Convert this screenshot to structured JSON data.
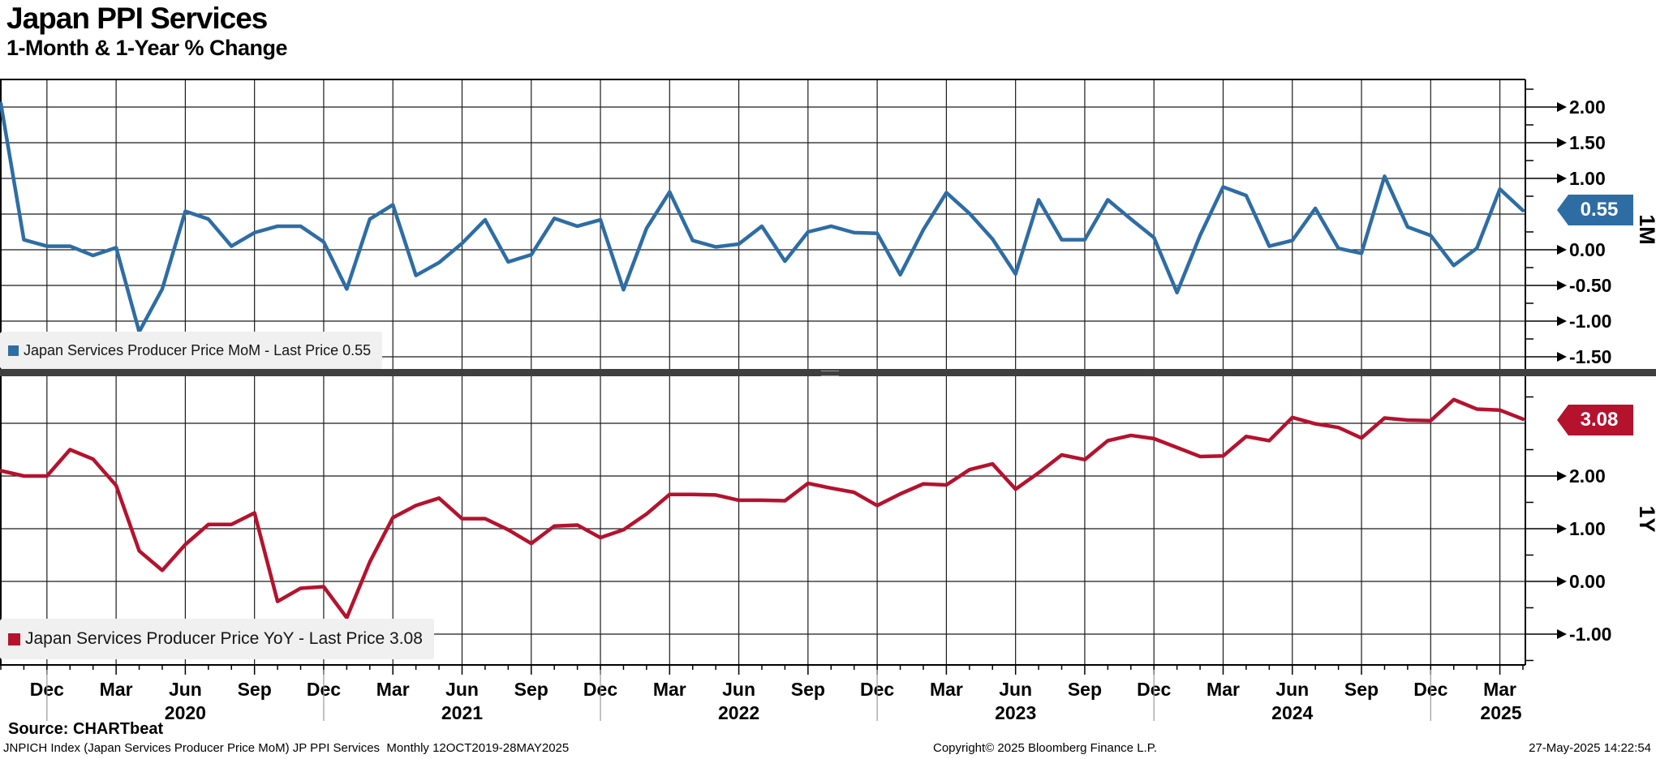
{
  "header": {
    "title": "Japan PPI Services",
    "subtitle": "1-Month & 1-Year % Change"
  },
  "legends": {
    "mom": "Japan Services Producer Price MoM - Last Price 0.55",
    "yoy": "Japan Services Producer Price YoY - Last Price 3.08"
  },
  "badges": {
    "mom": "0.55",
    "yoy": "3.08"
  },
  "colors": {
    "mom": "#2e6da4",
    "yoy": "#b5122e",
    "grid": "#1c1c1c",
    "divider": "#3f3f3f",
    "legend_bg": "#f0f0f0",
    "year_separator": "#999999"
  },
  "footer": {
    "source": "Source: CHARTbeat",
    "description": "JNPICH Index (Japan Services Producer Price MoM) JP PPI Services  Monthly 12OCT2019-28MAY2025",
    "copyright": "Copyright© 2025 Bloomberg Finance L.P.",
    "datetime": "27-May-2025 14:22:54"
  },
  "x_axis": {
    "start_month": "Oct 2019",
    "end_month": "Apr 2025",
    "frequency": "monthly",
    "quarter_labels": [
      "Dec",
      "Mar",
      "Jun",
      "Sep",
      "Dec",
      "Mar",
      "Jun",
      "Sep",
      "Dec",
      "Mar",
      "Jun",
      "Sep",
      "Dec",
      "Mar",
      "Jun",
      "Sep",
      "Dec",
      "Mar",
      "Jun",
      "Sep",
      "Dec",
      "Mar"
    ],
    "year_labels": [
      "2020",
      "2021",
      "2022",
      "2023",
      "2024",
      "2025"
    ]
  },
  "chart_data": [
    {
      "type": "line",
      "panel": "top",
      "name": "Japan Services Producer Price MoM",
      "axis_label": "1M",
      "color": "#2e6da4",
      "last_price": 0.55,
      "ylim": [
        -1.68,
        2.39
      ],
      "y_gridlines": [
        2.0,
        1.5,
        1.0,
        0.5,
        0.0,
        -0.5,
        -1.0,
        -1.5
      ],
      "y_tick_labels": [
        2.0,
        1.5,
        1.0,
        0.0,
        -0.5,
        -1.0,
        -1.5
      ],
      "x": [
        "2019-10",
        "2019-11",
        "2019-12",
        "2020-01",
        "2020-02",
        "2020-03",
        "2020-04",
        "2020-05",
        "2020-06",
        "2020-07",
        "2020-08",
        "2020-09",
        "2020-10",
        "2020-11",
        "2020-12",
        "2021-01",
        "2021-02",
        "2021-03",
        "2021-04",
        "2021-05",
        "2021-06",
        "2021-07",
        "2021-08",
        "2021-09",
        "2021-10",
        "2021-11",
        "2021-12",
        "2022-01",
        "2022-02",
        "2022-03",
        "2022-04",
        "2022-05",
        "2022-06",
        "2022-07",
        "2022-08",
        "2022-09",
        "2022-10",
        "2022-11",
        "2022-12",
        "2023-01",
        "2023-02",
        "2023-03",
        "2023-04",
        "2023-05",
        "2023-06",
        "2023-07",
        "2023-08",
        "2023-09",
        "2023-10",
        "2023-11",
        "2023-12",
        "2024-01",
        "2024-02",
        "2024-03",
        "2024-04",
        "2024-05",
        "2024-06",
        "2024-07",
        "2024-08",
        "2024-09",
        "2024-10",
        "2024-11",
        "2024-12",
        "2025-01",
        "2025-02",
        "2025-03",
        "2025-04"
      ],
      "values": [
        2.05,
        0.14,
        0.05,
        0.05,
        -0.08,
        0.03,
        -1.15,
        -0.55,
        0.54,
        0.43,
        0.05,
        0.24,
        0.33,
        0.33,
        0.11,
        -0.55,
        0.43,
        0.63,
        -0.36,
        -0.18,
        0.09,
        0.42,
        -0.17,
        -0.07,
        0.44,
        0.33,
        0.42,
        -0.56,
        0.3,
        0.81,
        0.13,
        0.04,
        0.08,
        0.33,
        -0.16,
        0.25,
        0.33,
        0.24,
        0.23,
        -0.35,
        0.28,
        0.8,
        0.51,
        0.15,
        -0.34,
        0.7,
        0.14,
        0.14,
        0.7,
        0.43,
        0.17,
        -0.6,
        0.2,
        0.88,
        0.76,
        0.05,
        0.13,
        0.58,
        0.02,
        -0.05,
        1.03,
        0.32,
        0.2,
        -0.22,
        0.02,
        0.85,
        0.55
      ]
    },
    {
      "type": "line",
      "panel": "bottom",
      "name": "Japan Services Producer Price YoY",
      "axis_label": "1Y",
      "color": "#b5122e",
      "last_price": 3.08,
      "ylim": [
        -1.58,
        3.89
      ],
      "y_gridlines": [
        3.0,
        2.0,
        1.0,
        0.0,
        -1.0
      ],
      "y_tick_labels": [
        2.0,
        1.0,
        0.0,
        -1.0
      ],
      "x": "same as top panel (monthly Oct 2019 - Apr 2025)",
      "values": [
        2.1,
        2.0,
        2.0,
        2.5,
        2.32,
        1.82,
        0.58,
        0.21,
        0.7,
        1.08,
        1.08,
        1.3,
        -0.38,
        -0.13,
        -0.1,
        -0.69,
        0.37,
        1.21,
        1.44,
        1.58,
        1.19,
        1.19,
        0.98,
        0.72,
        1.05,
        1.07,
        0.83,
        0.98,
        1.28,
        1.65,
        1.65,
        1.64,
        1.54,
        1.54,
        1.53,
        1.86,
        1.77,
        1.69,
        1.44,
        1.66,
        1.85,
        1.83,
        2.12,
        2.23,
        1.75,
        2.06,
        2.4,
        2.31,
        2.67,
        2.77,
        2.71,
        2.54,
        2.37,
        2.38,
        2.75,
        2.67,
        3.11,
        2.99,
        2.92,
        2.72,
        3.1,
        3.06,
        3.05,
        3.45,
        3.27,
        3.25,
        3.08
      ]
    }
  ]
}
